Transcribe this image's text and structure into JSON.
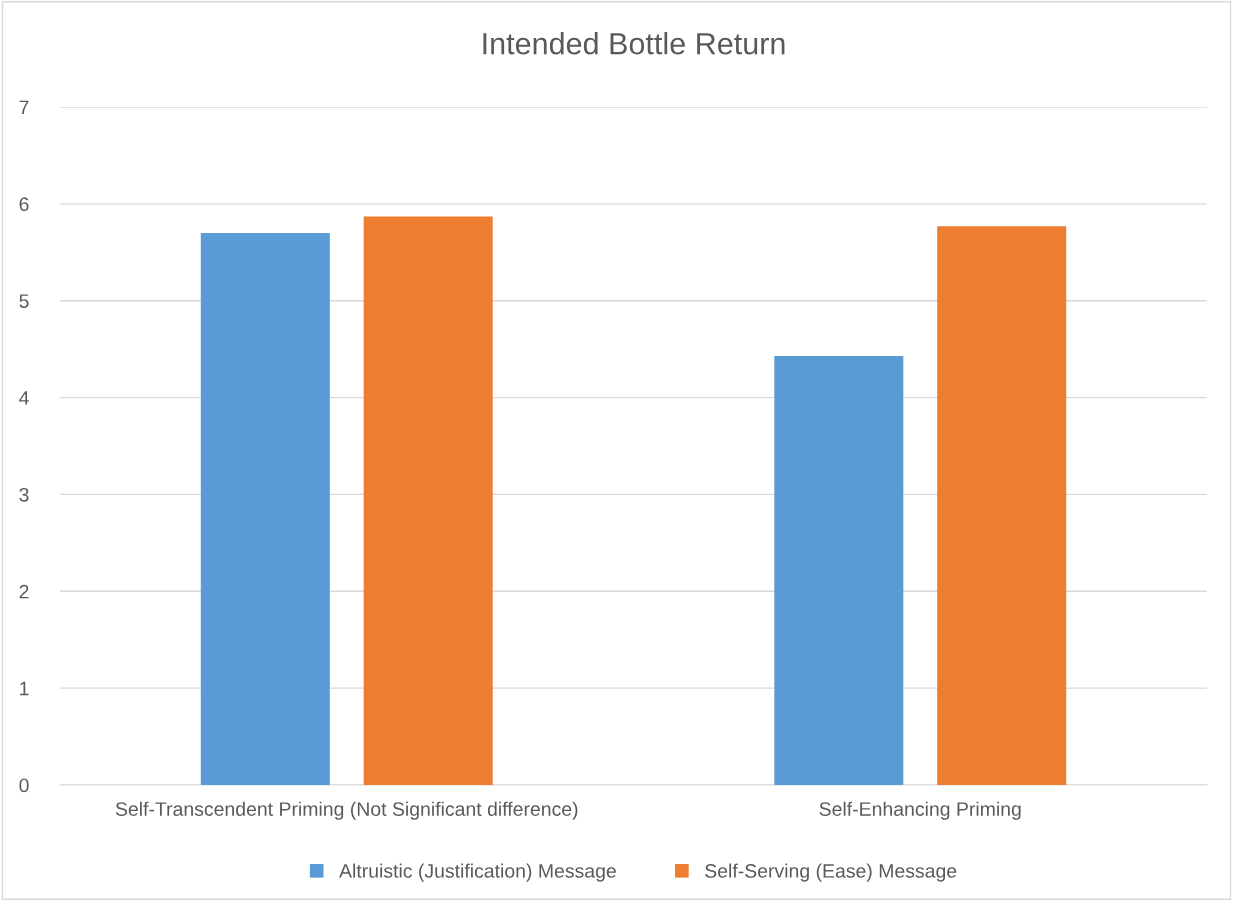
{
  "chart_data": {
    "type": "bar",
    "title": "Intended Bottle Return",
    "categories": [
      "Self-Transcendent Priming (Not Significant difference)",
      "Self-Enhancing Priming"
    ],
    "series": [
      {
        "name": "Altruistic (Justification) Message",
        "color": "#5b9bd5",
        "values": [
          5.7,
          4.43
        ]
      },
      {
        "name": "Self-Serving (Ease) Message",
        "color": "#ed7d31",
        "values": [
          5.87,
          5.77
        ]
      }
    ],
    "ylim": [
      0,
      7
    ],
    "yticks": [
      0,
      1,
      2,
      3,
      4,
      5,
      6,
      7
    ],
    "grid": "y",
    "legend": "bottom"
  }
}
